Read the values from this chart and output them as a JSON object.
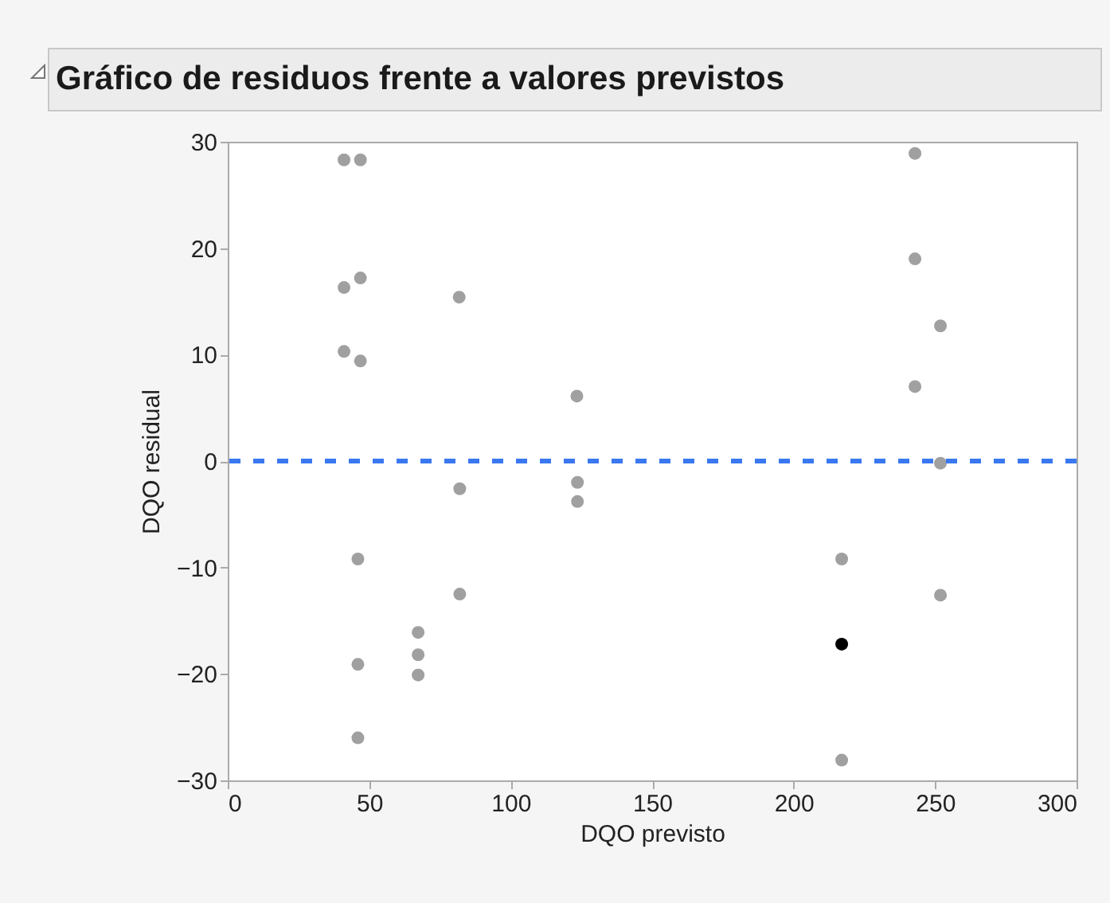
{
  "chart_data": {
    "type": "scatter",
    "title": "Gráfico de residuos frente a valores previstos",
    "xlabel": "DQO previsto",
    "ylabel": "DQO residual",
    "xlim": [
      0,
      300
    ],
    "xticks": [
      0,
      50,
      100,
      150,
      200,
      250,
      300
    ],
    "ylim": [
      -30,
      30
    ],
    "yticks": [
      -30,
      -20,
      -10,
      0,
      10,
      20,
      30
    ],
    "grid": false,
    "legend": false,
    "marker": "circle",
    "series": [
      {
        "color": "#a0a0a0",
        "x": [
          41.1,
          46.9,
          41.1,
          46.9,
          41.1,
          46.9,
          81.8,
          123.4,
          46.0,
          46.0,
          46.0,
          67.3,
          67.3,
          67.3,
          82.0,
          82.0,
          123.6,
          123.6,
          242.9,
          242.9,
          251.9,
          242.9,
          251.9,
          217.0,
          251.9,
          217.0
        ],
        "values": [
          28.3,
          28.3,
          16.3,
          17.2,
          10.3,
          9.4,
          15.4,
          6.1,
          -9.2,
          -19.1,
          -26.0,
          -16.1,
          -18.2,
          -20.1,
          -2.6,
          -12.5,
          -2.0,
          -3.8,
          28.9,
          19.0,
          12.7,
          7.0,
          -0.2,
          -9.2,
          -12.6,
          -28.1
        ]
      },
      {
        "color": "#000000",
        "x": [
          217.0
        ],
        "values": [
          -17.2
        ]
      }
    ],
    "ref_lines": [
      {
        "axis": "y",
        "value": 0,
        "color": "#3a78f0",
        "line_style": "dashed"
      }
    ]
  }
}
